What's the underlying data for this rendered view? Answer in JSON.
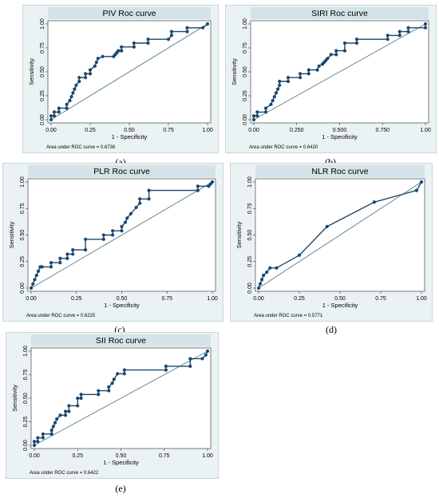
{
  "chart_data": [
    {
      "id": "piv",
      "type": "line",
      "panel_label": "(a)",
      "title": "PIV Roc curve",
      "xlabel": "1 - Specificity",
      "ylabel": "Sensitivity",
      "xlim": [
        0,
        1
      ],
      "ylim": [
        0,
        1
      ],
      "xticks": [
        "0.00",
        "0.25",
        "0.50",
        "0.75",
        "1.00"
      ],
      "yticks": [
        "0.00",
        "0.25",
        "0.50",
        "0.75",
        "1.00"
      ],
      "annotation": "Area under ROC curve = 0.6736",
      "series": [
        {
          "x": [
            0.0,
            0.0,
            0.02,
            0.02,
            0.05,
            0.05,
            0.1,
            0.1,
            0.12,
            0.13,
            0.14,
            0.15,
            0.16,
            0.18,
            0.18,
            0.22,
            0.22,
            0.25,
            0.25,
            0.28,
            0.29,
            0.3,
            0.33,
            0.4,
            0.41,
            0.42,
            0.43,
            0.45,
            0.45,
            0.53,
            0.53,
            0.62,
            0.62,
            0.75,
            0.77,
            0.77,
            0.87,
            0.87,
            0.97,
            1.0
          ],
          "y": [
            0.0,
            0.04,
            0.04,
            0.08,
            0.08,
            0.12,
            0.12,
            0.16,
            0.2,
            0.24,
            0.28,
            0.32,
            0.36,
            0.4,
            0.44,
            0.44,
            0.48,
            0.48,
            0.52,
            0.56,
            0.6,
            0.64,
            0.66,
            0.66,
            0.68,
            0.7,
            0.72,
            0.72,
            0.76,
            0.76,
            0.8,
            0.8,
            0.84,
            0.84,
            0.88,
            0.92,
            0.92,
            0.96,
            0.96,
            1.0
          ]
        }
      ]
    },
    {
      "id": "siri",
      "type": "line",
      "panel_label": "(b)",
      "title": "SIRI Roc curve",
      "xlabel": "1 - Specificity",
      "ylabel": "Sensitivity",
      "xlim": [
        0,
        1
      ],
      "ylim": [
        0,
        1
      ],
      "xticks": [
        "0.00",
        "0.250",
        "0.500",
        "0.750",
        "1.00"
      ],
      "yticks": [
        "0.00",
        "0.25",
        "0.50",
        "0.75",
        "1.00"
      ],
      "annotation": "Area under ROC curve = 0.6420",
      "series": [
        {
          "x": [
            0.0,
            0.0,
            0.02,
            0.02,
            0.07,
            0.07,
            0.1,
            0.11,
            0.12,
            0.13,
            0.14,
            0.15,
            0.15,
            0.2,
            0.2,
            0.27,
            0.27,
            0.32,
            0.32,
            0.37,
            0.38,
            0.4,
            0.41,
            0.42,
            0.43,
            0.45,
            0.48,
            0.48,
            0.53,
            0.53,
            0.6,
            0.6,
            0.78,
            0.78,
            0.85,
            0.85,
            0.9,
            0.9,
            1.0,
            1.0
          ],
          "y": [
            0.0,
            0.04,
            0.04,
            0.08,
            0.08,
            0.12,
            0.16,
            0.2,
            0.24,
            0.28,
            0.32,
            0.36,
            0.4,
            0.4,
            0.44,
            0.44,
            0.48,
            0.48,
            0.52,
            0.52,
            0.56,
            0.58,
            0.6,
            0.62,
            0.64,
            0.68,
            0.68,
            0.72,
            0.72,
            0.8,
            0.8,
            0.84,
            0.84,
            0.88,
            0.88,
            0.92,
            0.92,
            0.96,
            0.96,
            1.0
          ]
        }
      ]
    },
    {
      "id": "plr",
      "type": "line",
      "panel_label": "(c)",
      "title": "PLR Roc curve",
      "xlabel": "1 - Specificity",
      "ylabel": "Sensitivity",
      "xlim": [
        0,
        1
      ],
      "ylim": [
        0,
        1
      ],
      "xticks": [
        "0.00",
        "0.25",
        "0.50",
        "0.75",
        "1.00"
      ],
      "yticks": [
        "0.00",
        "0.25",
        "0.50",
        "0.75",
        "1.00"
      ],
      "annotation": "Area under ROC curve = 0.6225",
      "series": [
        {
          "x": [
            0.0,
            0.01,
            0.02,
            0.03,
            0.04,
            0.05,
            0.06,
            0.11,
            0.11,
            0.16,
            0.16,
            0.2,
            0.2,
            0.23,
            0.23,
            0.3,
            0.3,
            0.4,
            0.4,
            0.45,
            0.45,
            0.5,
            0.5,
            0.52,
            0.53,
            0.55,
            0.58,
            0.6,
            0.6,
            0.65,
            0.65,
            0.92,
            0.92,
            0.98,
            0.99,
            1.0
          ],
          "y": [
            0.0,
            0.04,
            0.08,
            0.12,
            0.16,
            0.2,
            0.2,
            0.2,
            0.24,
            0.24,
            0.28,
            0.28,
            0.32,
            0.32,
            0.36,
            0.36,
            0.46,
            0.46,
            0.5,
            0.5,
            0.54,
            0.54,
            0.58,
            0.62,
            0.66,
            0.7,
            0.76,
            0.8,
            0.84,
            0.84,
            0.92,
            0.92,
            0.96,
            0.96,
            0.98,
            1.0
          ]
        }
      ]
    },
    {
      "id": "nlr",
      "type": "line",
      "panel_label": "(d)",
      "title": "NLR Roc curve",
      "xlabel": "1 - Specificity",
      "ylabel": "Sensitivity",
      "xlim": [
        0,
        1
      ],
      "ylim": [
        0,
        1
      ],
      "xticks": [
        "0.00",
        "0.25",
        "0.50",
        "0.75",
        "1.00"
      ],
      "yticks": [
        "0.00",
        "0.25",
        "0.50",
        "0.75",
        "1.00"
      ],
      "annotation": "Area under ROC curve = 0.5771",
      "series": [
        {
          "x": [
            0.0,
            0.01,
            0.02,
            0.03,
            0.05,
            0.07,
            0.11,
            0.25,
            0.42,
            0.71,
            0.97,
            1.0
          ],
          "y": [
            0.0,
            0.04,
            0.08,
            0.12,
            0.15,
            0.19,
            0.19,
            0.31,
            0.58,
            0.81,
            0.92,
            1.0
          ]
        }
      ]
    },
    {
      "id": "sii",
      "type": "line",
      "panel_label": "(e)",
      "title": "SII Roc curve",
      "xlabel": "1 - Specificity",
      "ylabel": "Sensitivity",
      "xlim": [
        0,
        1
      ],
      "ylim": [
        0,
        1
      ],
      "xticks": [
        "0.00",
        "0.25",
        "0.50",
        "0.75",
        "1.00"
      ],
      "yticks": [
        "0.00",
        "0.25",
        "0.50",
        "0.75",
        "1.00"
      ],
      "annotation": "Area under ROC curve = 0.6422",
      "series": [
        {
          "x": [
            0.0,
            0.0,
            0.02,
            0.02,
            0.05,
            0.05,
            0.1,
            0.1,
            0.11,
            0.12,
            0.13,
            0.15,
            0.18,
            0.18,
            0.2,
            0.2,
            0.25,
            0.25,
            0.27,
            0.27,
            0.37,
            0.37,
            0.43,
            0.43,
            0.45,
            0.46,
            0.48,
            0.52,
            0.52,
            0.76,
            0.76,
            0.9,
            0.9,
            0.97,
            0.99,
            1.0
          ],
          "y": [
            0.0,
            0.04,
            0.04,
            0.08,
            0.08,
            0.12,
            0.12,
            0.16,
            0.2,
            0.24,
            0.28,
            0.32,
            0.32,
            0.36,
            0.36,
            0.42,
            0.42,
            0.5,
            0.5,
            0.54,
            0.54,
            0.58,
            0.58,
            0.62,
            0.66,
            0.7,
            0.76,
            0.76,
            0.8,
            0.8,
            0.84,
            0.84,
            0.92,
            0.92,
            0.96,
            1.0
          ]
        }
      ]
    }
  ],
  "colors": {
    "frame": "#eaf2f3",
    "plot_bg": "#ffffff",
    "curve": "#1a476f",
    "reference": "#55808a",
    "title_bar": "#d4e3e7",
    "text": "#000000"
  }
}
